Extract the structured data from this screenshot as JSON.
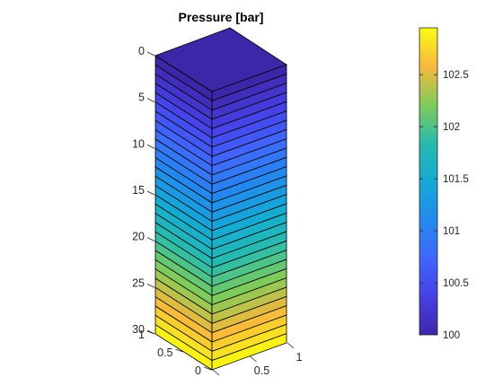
{
  "chart_data": {
    "type": "3d-layered-column",
    "title": "Pressure [bar]",
    "z_axis": {
      "ticks": [
        0,
        5,
        10,
        15,
        20,
        25,
        30
      ],
      "range": [
        0,
        30
      ],
      "direction": "down"
    },
    "x_axis": {
      "ticks": [
        0,
        0.5,
        1
      ],
      "range": [
        0,
        1
      ]
    },
    "y_axis": {
      "ticks": [
        0,
        0.5,
        1
      ],
      "range": [
        0,
        1
      ]
    },
    "layers": 30,
    "values": [
      100.0,
      100.1,
      100.2,
      100.3,
      100.4,
      100.5,
      100.6,
      100.7,
      100.8,
      100.9,
      101.0,
      101.1,
      101.2,
      101.3,
      101.4,
      101.5,
      101.6,
      101.7,
      101.8,
      101.9,
      102.0,
      102.1,
      102.2,
      102.3,
      102.4,
      102.5,
      102.6,
      102.7,
      102.8,
      102.9
    ],
    "colorbar": {
      "range": [
        100,
        102.95
      ],
      "ticks": [
        100,
        100.5,
        101,
        101.5,
        102,
        102.5
      ],
      "tick_labels": [
        "100",
        "100.5",
        "101",
        "101.5",
        "102",
        "102.5"
      ],
      "colormap": "parula"
    }
  }
}
